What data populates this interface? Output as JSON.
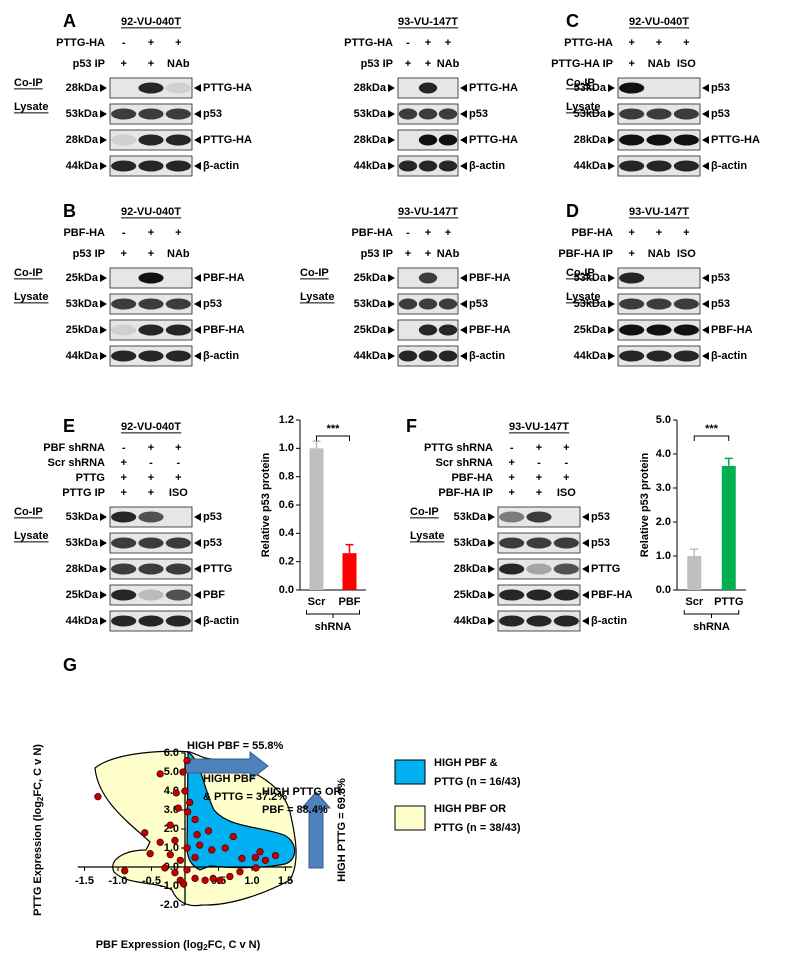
{
  "panels": [
    {
      "letter": "A",
      "title": "92-VU-040T",
      "conditions": [
        {
          "label": "PTTG-HA",
          "values": [
            "-",
            "+",
            "+"
          ]
        },
        {
          "label": "p53 IP",
          "values": [
            "+",
            "+",
            "NAb"
          ]
        }
      ],
      "sections": [
        "Co-IP",
        "Lysate"
      ],
      "bands": [
        {
          "size": "28kDa",
          "protein": "PTTG-HA"
        },
        {
          "size": "53kDa",
          "protein": "p53"
        },
        {
          "size": "28kDa",
          "protein": "PTTG-HA"
        },
        {
          "size": "44kDa",
          "protein": "β-actin"
        }
      ]
    },
    {
      "title": "93-VU-147T",
      "conditions": [
        {
          "label": "PTTG-HA",
          "values": [
            "-",
            "+",
            "+"
          ]
        },
        {
          "label": "p53 IP",
          "values": [
            "+",
            "+",
            "NAb"
          ]
        }
      ],
      "bands": [
        {
          "size": "28kDa",
          "protein": "PTTG-HA"
        },
        {
          "size": "53kDa",
          "protein": "p53"
        },
        {
          "size": "28kDa",
          "protein": "PTTG-HA"
        },
        {
          "size": "44kDa",
          "protein": "β-actin"
        }
      ]
    },
    {
      "letter": "C",
      "title": "92-VU-040T",
      "conditions": [
        {
          "label": "PTTG-HA",
          "values": [
            "+",
            "+",
            "+"
          ]
        },
        {
          "label": "PTTG-HA IP",
          "values": [
            "+",
            "NAb",
            "ISO"
          ]
        }
      ],
      "sections": [
        "Co-IP",
        "Lysate"
      ],
      "bands": [
        {
          "size": "53kDa",
          "protein": "p53"
        },
        {
          "size": "53kDa",
          "protein": "p53"
        },
        {
          "size": "28kDa",
          "protein": "PTTG-HA"
        },
        {
          "size": "44kDa",
          "protein": "β-actin"
        }
      ]
    },
    {
      "letter": "B",
      "title": "92-VU-040T",
      "conditions": [
        {
          "label": "PBF-HA",
          "values": [
            "-",
            "+",
            "+"
          ]
        },
        {
          "label": "p53 IP",
          "values": [
            "+",
            "+",
            "NAb"
          ]
        }
      ],
      "sections": [
        "Co-IP",
        "Lysate"
      ],
      "bands": [
        {
          "size": "25kDa",
          "protein": "PBF-HA"
        },
        {
          "size": "53kDa",
          "protein": "p53"
        },
        {
          "size": "25kDa",
          "protein": "PBF-HA"
        },
        {
          "size": "44kDa",
          "protein": "β-actin"
        }
      ]
    },
    {
      "title": "93-VU-147T",
      "conditions": [
        {
          "label": "PBF-HA",
          "values": [
            "-",
            "+",
            "+"
          ]
        },
        {
          "label": "p53 IP",
          "values": [
            "+",
            "+",
            "NAb"
          ]
        }
      ],
      "sections": [
        "Co-IP",
        "Lysate"
      ],
      "bands": [
        {
          "size": "25kDa",
          "protein": "PBF-HA"
        },
        {
          "size": "53kDa",
          "protein": "p53"
        },
        {
          "size": "25kDa",
          "protein": "PBF-HA"
        },
        {
          "size": "44kDa",
          "protein": "β-actin"
        }
      ]
    },
    {
      "letter": "D",
      "title": "93-VU-147T",
      "conditions": [
        {
          "label": "PBF-HA",
          "values": [
            "+",
            "+",
            "+"
          ]
        },
        {
          "label": "PBF-HA IP",
          "values": [
            "+",
            "NAb",
            "ISO"
          ]
        }
      ],
      "sections": [
        "Co-IP",
        "Lysate"
      ],
      "bands": [
        {
          "size": "53kDa",
          "protein": "p53"
        },
        {
          "size": "53kDa",
          "protein": "p53"
        },
        {
          "size": "25kDa",
          "protein": "PBF-HA"
        },
        {
          "size": "44kDa",
          "protein": "β-actin"
        }
      ]
    },
    {
      "letter": "E",
      "title": "92-VU-040T",
      "conditions": [
        {
          "label": "PBF shRNA",
          "values": [
            "-",
            "+",
            "+"
          ]
        },
        {
          "label": "Scr shRNA",
          "values": [
            "+",
            "-",
            "-"
          ]
        },
        {
          "label": "PTTG",
          "values": [
            "+",
            "+",
            "+"
          ]
        },
        {
          "label": "PTTG IP",
          "values": [
            "+",
            "+",
            "ISO"
          ]
        }
      ],
      "sections": [
        "Co-IP",
        "Lysate"
      ],
      "bands": [
        {
          "size": "53kDa",
          "protein": "p53"
        },
        {
          "size": "53kDa",
          "protein": "p53"
        },
        {
          "size": "28kDa",
          "protein": "PTTG"
        },
        {
          "size": "25kDa",
          "protein": "PBF"
        },
        {
          "size": "44kDa",
          "protein": "β-actin"
        }
      ]
    },
    {
      "letter": "F",
      "title": "93-VU-147T",
      "conditions": [
        {
          "label": "PTTG shRNA",
          "values": [
            "-",
            "+",
            "+"
          ]
        },
        {
          "label": "Scr shRNA",
          "values": [
            "+",
            "-",
            "-"
          ]
        },
        {
          "label": "PBF-HA",
          "values": [
            "+",
            "+",
            "+"
          ]
        },
        {
          "label": "PBF-HA IP",
          "values": [
            "+",
            "+",
            "ISO"
          ]
        }
      ],
      "sections": [
        "Co-IP",
        "Lysate"
      ],
      "bands": [
        {
          "size": "53kDa",
          "protein": "p53"
        },
        {
          "size": "53kDa",
          "protein": "p53"
        },
        {
          "size": "28kDa",
          "protein": "PTTG"
        },
        {
          "size": "25kDa",
          "protein": "PBF-HA"
        },
        {
          "size": "44kDa",
          "protein": "β-actin"
        }
      ]
    }
  ],
  "chart_data": [
    {
      "type": "bar",
      "ylabel": "Relative p53 protein",
      "categories": [
        "Scr",
        "PBF"
      ],
      "values": [
        1.0,
        0.26
      ],
      "errors": [
        0.05,
        0.06
      ],
      "colors": [
        "#bfbfbf",
        "#ff0000"
      ],
      "ylim": [
        0,
        1.2
      ],
      "yticks": [
        {
          "value": 0,
          "label": "0.0"
        },
        0.2,
        0.4,
        0.6,
        0.8,
        {
          "value": 1,
          "label": "1.0"
        },
        1.2
      ],
      "annotation": "***",
      "group_label": "shRNA"
    },
    {
      "type": "bar",
      "ylabel": "Relative p53 protein",
      "categories": [
        "Scr",
        "PTTG"
      ],
      "values": [
        1.0,
        3.65
      ],
      "errors": [
        0.2,
        0.22
      ],
      "colors": [
        "#bfbfbf",
        "#00b050"
      ],
      "ylim": [
        0,
        5
      ],
      "yticks": [
        {
          "value": 0,
          "label": "0.0"
        },
        {
          "value": 1,
          "label": "1.0"
        },
        {
          "value": 2,
          "label": "2.0"
        },
        {
          "value": 3,
          "label": "3.0"
        },
        {
          "value": 4,
          "label": "4.0"
        },
        {
          "value": 5,
          "label": "5.0"
        }
      ],
      "annotation": "***",
      "group_label": "shRNA"
    },
    {
      "type": "scatter",
      "panel": "G",
      "xlabel": [
        "PBF Expression (log",
        "2",
        "FC, C v N)"
      ],
      "ylabel": [
        "PTTG Expression (log",
        "2",
        "FC, C v N)"
      ],
      "color": "#c00000",
      "x": [
        -0.37,
        -0.13,
        -0.03,
        0,
        0.03,
        0.07,
        -0.22,
        -0.6,
        0.15,
        0.35,
        -0.52,
        -0.9,
        -0.3,
        -0.15,
        -0.07,
        -0.02,
        0.15,
        0.3,
        0.42,
        0.52,
        0.67,
        0.82,
        1.06,
        1.2,
        1.35,
        1.12,
        1.05,
        0.85,
        0.6,
        0.4,
        0.22,
        0.15,
        0.03,
        -0.07,
        -0.22,
        -0.37,
        0.72,
        0.18,
        -0.15,
        0.04,
        -0.1,
        -1.3,
        0.03
      ],
      "values": [
        4.9,
        3.9,
        5.0,
        4.0,
        5.6,
        3.4,
        2.2,
        1.8,
        2.5,
        1.9,
        0.7,
        -0.2,
        -0.05,
        -0.3,
        -0.7,
        -0.9,
        -0.6,
        -0.7,
        -0.6,
        -0.7,
        -0.5,
        -0.25,
        -0.05,
        0.35,
        0.6,
        0.8,
        0.5,
        0.45,
        1.0,
        0.9,
        1.15,
        0.5,
        1.0,
        0.35,
        0.65,
        1.3,
        1.6,
        1.7,
        1.4,
        2.9,
        3.1,
        3.7,
        -0.15
      ],
      "xlim": [
        -1.6,
        1.6
      ],
      "ylim": [
        -2,
        6
      ],
      "xticks": [
        -1.5,
        {
          "value": -1,
          "label": "-1.0"
        },
        -0.5,
        0.5,
        {
          "value": 1,
          "label": "1.0"
        },
        1.5
      ],
      "yticks": [
        {
          "value": -2,
          "label": "-2.0"
        },
        {
          "value": -1,
          "label": "-1.0"
        },
        {
          "value": 0,
          "label": "0.0"
        },
        {
          "value": 1,
          "label": "1.0"
        },
        {
          "value": 2,
          "label": "2.0"
        },
        {
          "value": 3,
          "label": "3.0"
        },
        {
          "value": 4,
          "label": "4.0"
        },
        {
          "value": 5,
          "label": "5.0"
        },
        {
          "value": 6,
          "label": "6.0"
        }
      ],
      "annotations": [
        [
          "HIGH PBF = 55.8%"
        ],
        [
          "HIGH PTTG OR",
          "PBF = 88.4%"
        ],
        [
          "HIGH PBF",
          "& PTTG = 37.2%"
        ],
        [
          "HIGH PTTG = 69.8%"
        ]
      ],
      "legend": [
        {
          "lines": [
            "HIGH PBF &",
            "PTTG (n = 16/43)"
          ],
          "color": "#00b0f0"
        },
        {
          "lines": [
            "HIGH PBF OR",
            "PTTG (n = 38/43)"
          ],
          "color": "#ffffcc"
        }
      ]
    }
  ]
}
